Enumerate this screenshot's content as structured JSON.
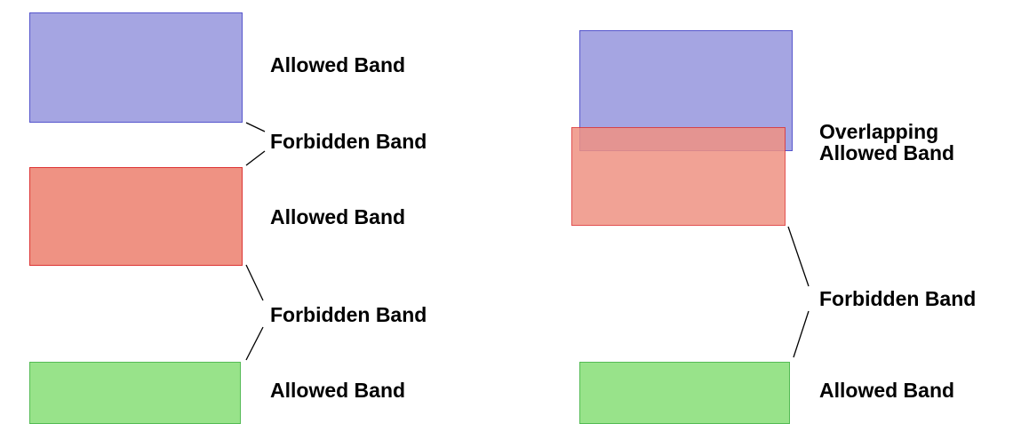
{
  "colors": {
    "blue_fill": "#a5a5e2",
    "blue_border": "#5555cc",
    "red_fill": "#ef9283",
    "red_border": "#dd3333",
    "green_fill": "#98e38a",
    "green_border": "#55bb55",
    "line": "#000000"
  },
  "left": {
    "labels": {
      "allowed_1": "Allowed Band",
      "forbidden_1": "Forbidden Band",
      "allowed_2": "Allowed Band",
      "forbidden_2": "Forbidden Band",
      "allowed_3": "Allowed Band"
    }
  },
  "right": {
    "labels": {
      "overlap_line1": "Overlapping",
      "overlap_line2": "Allowed Band",
      "forbidden": "Forbidden Band",
      "allowed": "Allowed Band"
    }
  }
}
